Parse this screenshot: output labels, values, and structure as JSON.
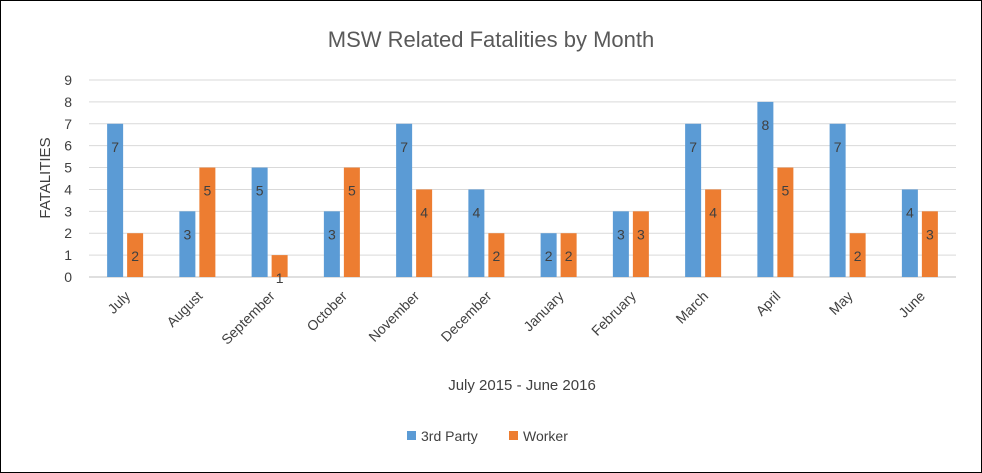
{
  "chart_data": {
    "type": "bar",
    "title": "MSW Related Fatalities by Month",
    "xlabel": "July 2015 - June 2016",
    "ylabel": "FATALITIES",
    "ylim": [
      0,
      9
    ],
    "yticks": [
      0,
      1,
      2,
      3,
      4,
      5,
      6,
      7,
      8,
      9
    ],
    "grid": true,
    "legend_position": "bottom",
    "categories": [
      "July",
      "August",
      "September",
      "October",
      "November",
      "December",
      "January",
      "February",
      "March",
      "April",
      "May",
      "June"
    ],
    "series": [
      {
        "name": "3rd Party",
        "color": "#5B9BD5",
        "values": [
          7,
          3,
          5,
          3,
          7,
          4,
          2,
          3,
          7,
          8,
          7,
          4
        ]
      },
      {
        "name": "Worker",
        "color": "#ED7D31",
        "values": [
          2,
          5,
          1,
          5,
          4,
          2,
          2,
          3,
          4,
          5,
          2,
          3
        ]
      }
    ]
  }
}
